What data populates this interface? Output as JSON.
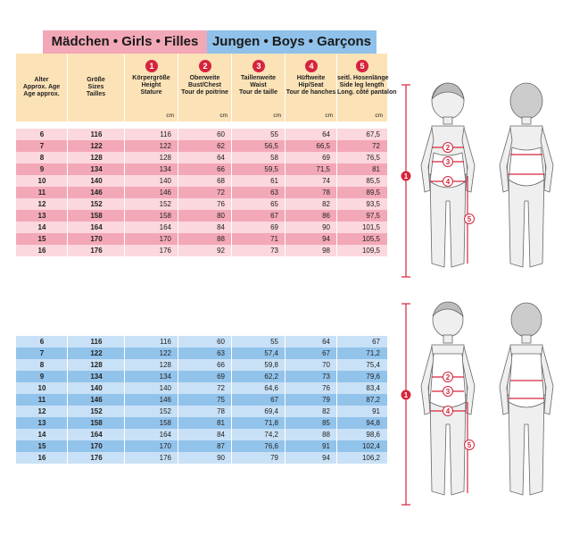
{
  "banner": {
    "girls_label": "Mädchen • Girls • Filles",
    "boys_label": "Jungen • Boys • Garçons"
  },
  "header": {
    "columns": [
      {
        "number": "",
        "lines": [
          "Alter",
          "Approx. Age",
          "Age approx."
        ],
        "unit": ""
      },
      {
        "number": "",
        "lines": [
          "Größe",
          "Sizes",
          "Tailles"
        ],
        "unit": ""
      },
      {
        "number": "1",
        "lines": [
          "Körpergröße",
          "Height",
          "Stature"
        ],
        "unit": "cm"
      },
      {
        "number": "2",
        "lines": [
          "Oberweite",
          "Bust/Chest",
          "Tour de poitrine"
        ],
        "unit": "cm"
      },
      {
        "number": "3",
        "lines": [
          "Taillenweite",
          "Waist",
          "Tour de taille"
        ],
        "unit": "cm"
      },
      {
        "number": "4",
        "lines": [
          "Hüftweite",
          "Hip/Seat",
          "Tour de hanches"
        ],
        "unit": "cm"
      },
      {
        "number": "5",
        "lines": [
          "seitl. Hosenlänge",
          "Side leg length",
          "Long. côté pantalon"
        ],
        "unit": "cm"
      }
    ]
  },
  "girls_rows": [
    [
      "6",
      "116",
      "116",
      "60",
      "55",
      "64",
      "67,5"
    ],
    [
      "7",
      "122",
      "122",
      "62",
      "56,5",
      "66,5",
      "72"
    ],
    [
      "8",
      "128",
      "128",
      "64",
      "58",
      "69",
      "76,5"
    ],
    [
      "9",
      "134",
      "134",
      "66",
      "59,5",
      "71,5",
      "81"
    ],
    [
      "10",
      "140",
      "140",
      "68",
      "61",
      "74",
      "85,5"
    ],
    [
      "11",
      "146",
      "146",
      "72",
      "63",
      "78",
      "89,5"
    ],
    [
      "12",
      "152",
      "152",
      "76",
      "65",
      "82",
      "93,5"
    ],
    [
      "13",
      "158",
      "158",
      "80",
      "67",
      "86",
      "97,5"
    ],
    [
      "14",
      "164",
      "164",
      "84",
      "69",
      "90",
      "101,5"
    ],
    [
      "15",
      "170",
      "170",
      "88",
      "71",
      "94",
      "105,5"
    ],
    [
      "16",
      "176",
      "176",
      "92",
      "73",
      "98",
      "109,5"
    ]
  ],
  "boys_rows": [
    [
      "6",
      "116",
      "116",
      "60",
      "55",
      "64",
      "67"
    ],
    [
      "7",
      "122",
      "122",
      "63",
      "57,4",
      "67",
      "71,2"
    ],
    [
      "8",
      "128",
      "128",
      "66",
      "59,8",
      "70",
      "75,4"
    ],
    [
      "9",
      "134",
      "134",
      "69",
      "62,2",
      "73",
      "79,6"
    ],
    [
      "10",
      "140",
      "140",
      "72",
      "64,6",
      "76",
      "83,4"
    ],
    [
      "11",
      "146",
      "146",
      "75",
      "67",
      "79",
      "87,2"
    ],
    [
      "12",
      "152",
      "152",
      "78",
      "69,4",
      "82",
      "91"
    ],
    [
      "13",
      "158",
      "158",
      "81",
      "71,8",
      "85",
      "94,8"
    ],
    [
      "14",
      "164",
      "164",
      "84",
      "74,2",
      "88",
      "98,6"
    ],
    [
      "15",
      "170",
      "170",
      "87",
      "76,6",
      "91",
      "102,4"
    ],
    [
      "16",
      "176",
      "176",
      "90",
      "79",
      "94",
      "106,2"
    ]
  ],
  "colors": {
    "girls_dark": "#f3a8b7",
    "girls_light": "#fbd7de",
    "girls_banner": "#f3a8b7",
    "boys_dark": "#92c3eb",
    "boys_light": "#c9e1f6",
    "boys_banner": "#8fc1ea",
    "header_bg": "#fbe2b7",
    "marker": "#d6243d"
  },
  "figures": {
    "girl_markers": [
      "1",
      "2",
      "3",
      "4",
      "5"
    ],
    "boy_markers": [
      "1",
      "2",
      "3",
      "4",
      "5"
    ]
  }
}
